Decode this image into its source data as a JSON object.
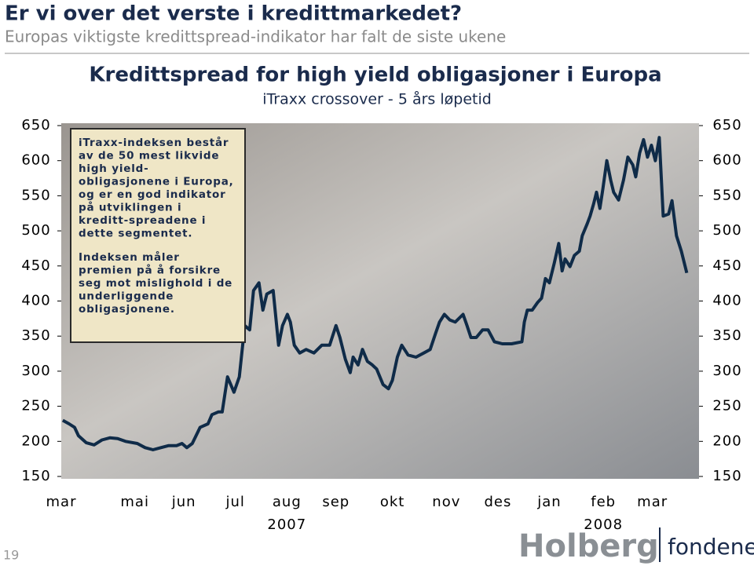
{
  "slide": {
    "title": "Er vi over det verste i kredittmarkedet?",
    "subtitle": "Europas viktigste kredittspread-indikator har falt de siste ukene",
    "page_number": "19",
    "logo": {
      "brand": "Holberg",
      "sub": "fondene"
    }
  },
  "chart_data": {
    "type": "line",
    "title": "Kredittspread for high yield obligasjoner i Europa",
    "subtitle": "iTraxx crossover - 5 års løpetid",
    "annotation": [
      [
        "iTraxx-indeksen består",
        "av de 50 mest likvide",
        "high yield-",
        "obligasjonene i Europa,",
        "og er en god indikator",
        "på utviklingen i",
        "kreditt-spreadene i",
        "dette segmentet."
      ],
      [
        "Indeksen måler",
        "premien på å forsikre",
        "seg mot mislighold i de",
        "underliggende",
        "obligasjonene."
      ]
    ],
    "xlim": [
      0,
      13
    ],
    "xticks": [
      {
        "value": 0,
        "label": "mar"
      },
      {
        "value": 1.5,
        "label": "mai"
      },
      {
        "value": 2.5,
        "label": "jun"
      },
      {
        "value": 3.55,
        "label": "jul"
      },
      {
        "value": 4.6,
        "label": "aug"
      },
      {
        "value": 5.6,
        "label": "sep"
      },
      {
        "value": 6.75,
        "label": "okt"
      },
      {
        "value": 7.85,
        "label": "nov"
      },
      {
        "value": 8.9,
        "label": "des"
      },
      {
        "value": 9.95,
        "label": "jan"
      },
      {
        "value": 11.05,
        "label": "feb"
      },
      {
        "value": 12.05,
        "label": "mar"
      }
    ],
    "year_labels": [
      "2007",
      "2008"
    ],
    "ylim": [
      150,
      650
    ],
    "yticks": [
      150,
      200,
      250,
      300,
      350,
      400,
      450,
      500,
      550,
      600,
      650
    ],
    "series": [
      {
        "color": "#0f2b48",
        "x": [
          0.03,
          0.16,
          0.27,
          0.35,
          0.51,
          0.67,
          0.83,
          0.99,
          1.15,
          1.31,
          1.55,
          1.71,
          1.87,
          2.03,
          2.19,
          2.35,
          2.46,
          2.56,
          2.67,
          2.83,
          2.99,
          3.07,
          3.2,
          3.28,
          3.39,
          3.52,
          3.63,
          3.74,
          3.84,
          3.92,
          4.03,
          4.11,
          4.19,
          4.32,
          4.43,
          4.51,
          4.61,
          4.67,
          4.75,
          4.86,
          4.99,
          5.15,
          5.31,
          5.47,
          5.6,
          5.68,
          5.79,
          5.89,
          5.95,
          6.05,
          6.14,
          6.24,
          6.34,
          6.43,
          6.56,
          6.67,
          6.75,
          6.85,
          6.94,
          7.07,
          7.23,
          7.39,
          7.52,
          7.63,
          7.71,
          7.81,
          7.92,
          8.03,
          8.19,
          8.27,
          8.35,
          8.46,
          8.59,
          8.7,
          8.83,
          8.99,
          9.18,
          9.39,
          9.44,
          9.5,
          9.6,
          9.71,
          9.79,
          9.87,
          9.95,
          10.05,
          10.14,
          10.21,
          10.27,
          10.37,
          10.46,
          10.56,
          10.62,
          10.72,
          10.78,
          10.85,
          10.91,
          10.98,
          11.04,
          11.12,
          11.2,
          11.26,
          11.36,
          11.46,
          11.55,
          11.65,
          11.71,
          11.79,
          11.87,
          11.95,
          12.03,
          12.11,
          12.19,
          12.27,
          12.38,
          12.45,
          12.54,
          12.64,
          12.75
        ],
        "values": [
          230,
          225,
          220,
          208,
          198,
          195,
          202,
          205,
          204,
          200,
          197,
          191,
          188,
          191,
          194,
          194,
          197,
          191,
          197,
          220,
          225,
          238,
          242,
          242,
          292,
          270,
          292,
          365,
          359,
          415,
          426,
          387,
          410,
          415,
          337,
          365,
          381,
          370,
          337,
          326,
          331,
          326,
          337,
          337,
          365,
          348,
          317,
          298,
          320,
          309,
          331,
          314,
          309,
          303,
          281,
          275,
          287,
          320,
          337,
          323,
          320,
          326,
          331,
          354,
          370,
          381,
          373,
          370,
          381,
          365,
          348,
          348,
          359,
          359,
          342,
          339,
          339,
          342,
          370,
          387,
          387,
          398,
          404,
          432,
          426,
          454,
          482,
          443,
          460,
          449,
          465,
          471,
          493,
          510,
          521,
          538,
          555,
          532,
          560,
          600,
          572,
          555,
          544,
          572,
          605,
          594,
          577,
          611,
          630,
          605,
          622,
          600,
          633,
          521,
          524,
          543,
          493,
          471,
          440
        ]
      }
    ]
  }
}
